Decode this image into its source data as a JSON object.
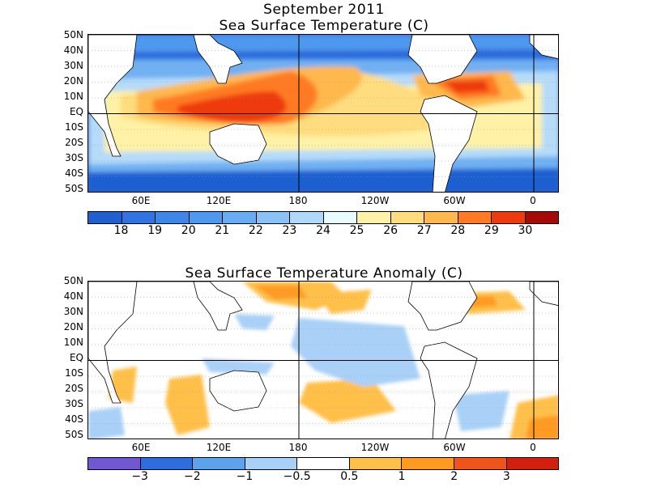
{
  "title_line1": "September 2011",
  "panels": [
    {
      "title": "Sea Surface Temperature (C)",
      "lat_labels": [
        "50N",
        "40N",
        "30N",
        "20N",
        "10N",
        "EQ",
        "10S",
        "20S",
        "30S",
        "40S",
        "50S"
      ],
      "lon_labels": [
        "60E",
        "120E",
        "180",
        "120W",
        "60W",
        "0"
      ],
      "colorbar": {
        "colors": [
          "#1f5fd0",
          "#2f74e0",
          "#3e86e8",
          "#4f98ef",
          "#68acf3",
          "#8ac2f6",
          "#b0d8f9",
          "#e8fcff",
          "#fff2a6",
          "#ffdc7d",
          "#ffb84c",
          "#ff7a22",
          "#ee3a0f",
          "#a60a06"
        ],
        "labels": [
          "18",
          "19",
          "20",
          "21",
          "22",
          "23",
          "24",
          "25",
          "26",
          "27",
          "28",
          "29",
          "30"
        ]
      }
    },
    {
      "title": "Sea Surface Temperature Anomaly (C)",
      "lat_labels": [
        "50N",
        "40N",
        "30N",
        "20N",
        "10N",
        "EQ",
        "10S",
        "20S",
        "30S",
        "40S",
        "50S"
      ],
      "lon_labels": [
        "60E",
        "120E",
        "180",
        "120W",
        "60W",
        "0"
      ],
      "colorbar": {
        "colors": [
          "#7157d4",
          "#2c6ee0",
          "#5ca3ee",
          "#a9d0f7",
          "#ffffff",
          "#ffc04a",
          "#ff9a20",
          "#f0541a",
          "#d21f0e"
        ],
        "labels": [
          "−3",
          "−2",
          "−1",
          "−0.5",
          "0.5",
          "1",
          "2",
          "3"
        ]
      }
    }
  ]
}
